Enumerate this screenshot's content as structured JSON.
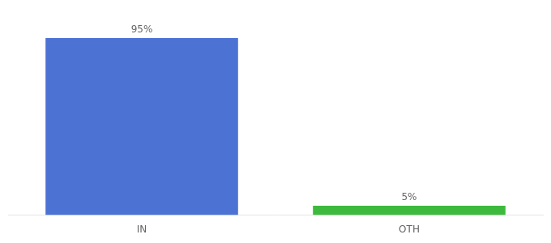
{
  "chart_data": {
    "type": "bar",
    "categories": [
      "IN",
      "OTH"
    ],
    "values": [
      95,
      5
    ],
    "value_labels": [
      "95%",
      "5%"
    ],
    "colors": [
      "#4c72d4",
      "#3dba3d"
    ],
    "ylim": [
      0,
      105
    ],
    "data_labels": true,
    "tick_labels": "x",
    "grid": false
  }
}
